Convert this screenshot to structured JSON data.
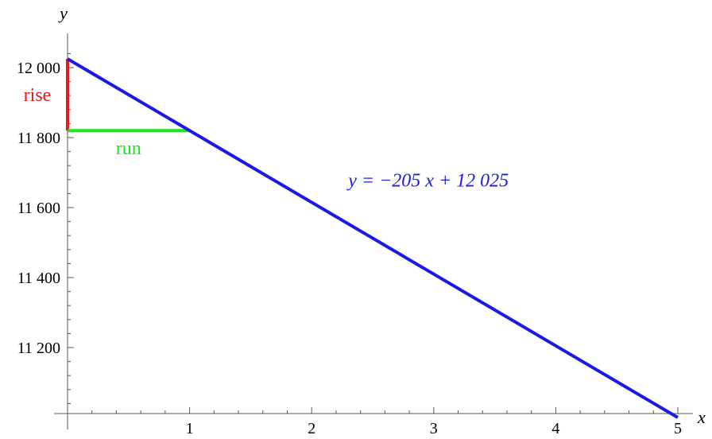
{
  "chart_data": {
    "type": "line",
    "title": "",
    "xlabel": "x",
    "ylabel": "y",
    "xlim": [
      0,
      5
    ],
    "ylim": [
      11000,
      12050
    ],
    "x_ticks": [
      1,
      2,
      3,
      4,
      5
    ],
    "x_tick_labels": [
      "1",
      "2",
      "3",
      "4",
      "5"
    ],
    "y_ticks": [
      11200,
      11400,
      11600,
      11800,
      12000
    ],
    "y_tick_labels": [
      "11 200",
      "11 400",
      "11 600",
      "11 800",
      "12 000"
    ],
    "grid": false,
    "series": [
      {
        "x": [
          0,
          5
        ],
        "y": [
          12025,
          11000
        ],
        "color": "#1a1ae6"
      }
    ],
    "slope_triangle": {
      "rise": {
        "label": "rise",
        "x": 0,
        "y_from": 12025,
        "y_to": 11820,
        "color": "#e61a1a"
      },
      "run": {
        "label": "run",
        "y": 11820,
        "x_from": 0,
        "x_to": 1,
        "color": "#1ae61a"
      }
    },
    "annotations": [
      {
        "text": "y = −205 x + 12 025",
        "x": 2.3,
        "y": 11660,
        "color": "#1a1ae6"
      }
    ]
  }
}
